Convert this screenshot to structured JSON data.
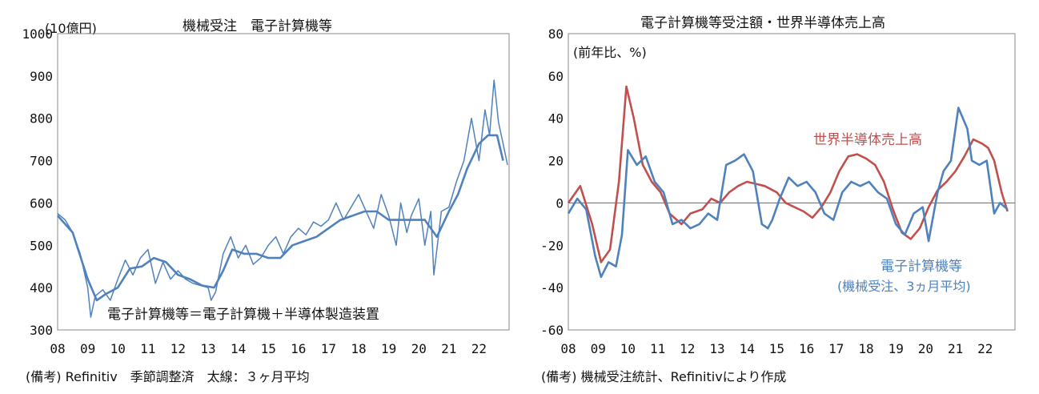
{
  "chart_data": [
    {
      "type": "line",
      "title": "機械受注　電子計算機等",
      "unit_label": "(10億円)",
      "xticks": [
        "08",
        "09",
        "10",
        "11",
        "12",
        "13",
        "14",
        "15",
        "16",
        "17",
        "18",
        "19",
        "20",
        "21",
        "22"
      ],
      "ylim": [
        300,
        1000
      ],
      "yticks": [
        300,
        400,
        500,
        600,
        700,
        800,
        900,
        1000
      ],
      "annotation": "電子計算機等＝電子計算機＋半導体製造装置",
      "note": "(備考) Refinitiv　季節調整済　太線：３ヶ月平均",
      "colors": {
        "series": "#4F81BD"
      },
      "series": [
        {
          "name": "",
          "style": "thin",
          "x": [
            2008.0,
            2008.25,
            2008.5,
            2008.75,
            2009.0,
            2009.1,
            2009.25,
            2009.5,
            2009.75,
            2010.0,
            2010.25,
            2010.5,
            2010.75,
            2011.0,
            2011.25,
            2011.5,
            2011.75,
            2012.0,
            2012.25,
            2012.5,
            2012.75,
            2013.0,
            2013.1,
            2013.25,
            2013.5,
            2013.75,
            2014.0,
            2014.25,
            2014.5,
            2014.75,
            2015.0,
            2015.25,
            2015.5,
            2015.75,
            2016.0,
            2016.25,
            2016.5,
            2016.75,
            2017.0,
            2017.25,
            2017.5,
            2017.75,
            2018.0,
            2018.25,
            2018.5,
            2018.75,
            2019.0,
            2019.25,
            2019.4,
            2019.6,
            2019.75,
            2020.0,
            2020.2,
            2020.4,
            2020.5,
            2020.75,
            2021.0,
            2021.25,
            2021.5,
            2021.75,
            2022.0,
            2022.2,
            2022.35,
            2022.5,
            2022.65,
            2022.8
          ],
          "y": [
            575,
            560,
            530,
            480,
            400,
            330,
            380,
            395,
            370,
            420,
            465,
            430,
            470,
            490,
            410,
            460,
            420,
            440,
            420,
            410,
            405,
            400,
            370,
            390,
            480,
            520,
            470,
            500,
            455,
            470,
            500,
            520,
            480,
            520,
            540,
            525,
            555,
            545,
            560,
            600,
            560,
            590,
            620,
            580,
            540,
            620,
            570,
            500,
            600,
            530,
            570,
            610,
            500,
            580,
            430,
            580,
            590,
            650,
            700,
            800,
            700,
            820,
            760,
            890,
            790,
            740
          ],
          "y_end": 690
        },
        {
          "name": "",
          "style": "thick",
          "x": [
            2008.0,
            2008.5,
            2009.0,
            2009.3,
            2009.6,
            2010.0,
            2010.4,
            2010.8,
            2011.2,
            2011.6,
            2012.0,
            2012.4,
            2012.8,
            2013.2,
            2013.5,
            2013.8,
            2014.2,
            2014.6,
            2015.0,
            2015.4,
            2015.8,
            2016.2,
            2016.6,
            2017.0,
            2017.4,
            2017.8,
            2018.2,
            2018.6,
            2019.0,
            2019.4,
            2019.8,
            2020.2,
            2020.6,
            2021.0,
            2021.3,
            2021.6,
            2022.0,
            2022.3,
            2022.6,
            2022.8
          ],
          "y": [
            570,
            530,
            420,
            370,
            385,
            400,
            445,
            450,
            470,
            460,
            430,
            420,
            405,
            400,
            440,
            490,
            480,
            480,
            470,
            470,
            500,
            510,
            520,
            540,
            560,
            570,
            580,
            580,
            560,
            560,
            560,
            560,
            520,
            580,
            620,
            680,
            740,
            760,
            760,
            700
          ]
        }
      ]
    },
    {
      "type": "line",
      "title": "電子計算機等受注額・世界半導体売上高",
      "unit_label": "(前年比、%)",
      "xticks": [
        "08",
        "09",
        "10",
        "11",
        "12",
        "13",
        "14",
        "15",
        "16",
        "17",
        "18",
        "19",
        "20",
        "21",
        "22"
      ],
      "ylim": [
        -60,
        80
      ],
      "yticks": [
        -60,
        -40,
        -20,
        0,
        20,
        40,
        60,
        80
      ],
      "note": "(備考) 機械受注統計、Refinitivにより作成",
      "colors": {
        "blue": "#4F81BD",
        "red": "#C0504D"
      },
      "series": [
        {
          "name": "世界半導体売上高",
          "color": "red",
          "x": [
            2008.0,
            2008.4,
            2008.8,
            2009.1,
            2009.4,
            2009.7,
            2009.95,
            2010.2,
            2010.5,
            2010.8,
            2011.1,
            2011.4,
            2011.8,
            2012.1,
            2012.5,
            2012.8,
            2013.1,
            2013.4,
            2013.7,
            2014.0,
            2014.3,
            2014.6,
            2015.0,
            2015.3,
            2015.6,
            2015.9,
            2016.2,
            2016.5,
            2016.8,
            2017.1,
            2017.4,
            2017.7,
            2018.0,
            2018.3,
            2018.6,
            2018.9,
            2019.2,
            2019.5,
            2019.8,
            2020.1,
            2020.4,
            2020.7,
            2021.0,
            2021.3,
            2021.6,
            2021.9,
            2022.1,
            2022.3,
            2022.55,
            2022.75
          ],
          "y": [
            0,
            8,
            -10,
            -28,
            -22,
            10,
            55,
            40,
            18,
            10,
            5,
            -5,
            -10,
            -5,
            -3,
            2,
            0,
            5,
            8,
            10,
            9,
            8,
            5,
            0,
            -2,
            -4,
            -7,
            -2,
            5,
            15,
            22,
            23,
            21,
            18,
            10,
            -3,
            -14,
            -17,
            -12,
            -2,
            6,
            10,
            15,
            22,
            30,
            28,
            26,
            20,
            5,
            -4
          ]
        },
        {
          "name": "電子計算機等",
          "subtitle": "(機械受注、3ヵ月平均)",
          "color": "blue",
          "x": [
            2008.0,
            2008.3,
            2008.6,
            2008.9,
            2009.1,
            2009.35,
            2009.6,
            2009.8,
            2010.0,
            2010.3,
            2010.6,
            2010.9,
            2011.2,
            2011.5,
            2011.8,
            2012.1,
            2012.4,
            2012.7,
            2013.0,
            2013.3,
            2013.6,
            2013.9,
            2014.2,
            2014.5,
            2014.7,
            2014.85,
            2015.1,
            2015.4,
            2015.7,
            2016.0,
            2016.3,
            2016.6,
            2016.9,
            2017.2,
            2017.5,
            2017.8,
            2018.1,
            2018.4,
            2018.7,
            2019.0,
            2019.3,
            2019.6,
            2019.9,
            2020.1,
            2020.4,
            2020.6,
            2020.85,
            2021.1,
            2021.4,
            2021.55,
            2021.8,
            2022.05,
            2022.3,
            2022.5,
            2022.75
          ],
          "y": [
            -5,
            2,
            -3,
            -25,
            -35,
            -28,
            -30,
            -15,
            25,
            18,
            22,
            10,
            5,
            -10,
            -8,
            -12,
            -10,
            -5,
            -8,
            18,
            20,
            23,
            15,
            -10,
            -12,
            -8,
            2,
            12,
            8,
            10,
            5,
            -5,
            -8,
            5,
            10,
            8,
            10,
            5,
            2,
            -10,
            -15,
            -5,
            -2,
            -18,
            5,
            15,
            20,
            45,
            35,
            20,
            18,
            20,
            -5,
            0,
            -3
          ]
        }
      ]
    }
  ]
}
